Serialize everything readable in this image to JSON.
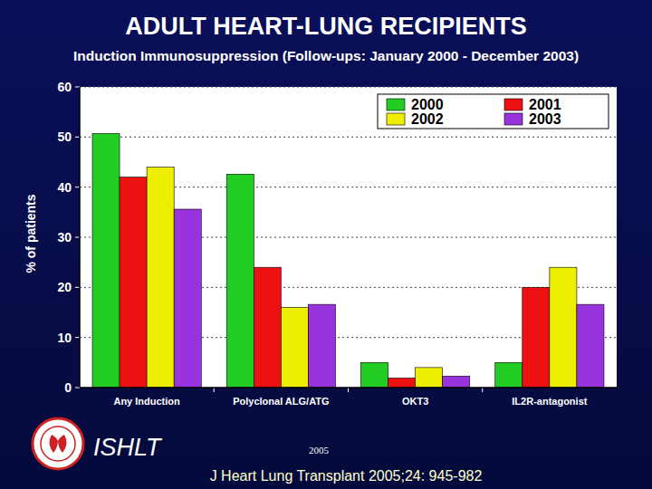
{
  "chart_data": {
    "type": "bar",
    "title": "ADULT HEART-LUNG RECIPIENTS",
    "subtitle": "Induction Immunosuppression (Follow-ups: January 2000  - December 2003)",
    "y_label": "% of patients",
    "categories": [
      "Any Induction",
      "Polyclonal ALG/ATG",
      "OKT3",
      "IL2R-antagonist"
    ],
    "series": [
      {
        "name": "2000",
        "color": "#22cc22",
        "values": [
          50.7,
          42.6,
          5.0,
          5.0
        ]
      },
      {
        "name": "2001",
        "color": "#ee1111",
        "values": [
          42.0,
          24.0,
          1.9,
          20.0
        ]
      },
      {
        "name": "2002",
        "color": "#eeee00",
        "values": [
          44.0,
          16.0,
          4.0,
          24.0
        ]
      },
      {
        "name": "2003",
        "color": "#9933dd",
        "values": [
          35.6,
          16.6,
          2.3,
          16.6
        ]
      }
    ],
    "ylim": [
      0,
      60
    ],
    "yticks": [
      0,
      10,
      20,
      30,
      40,
      50,
      60
    ],
    "grid": true,
    "legend": "top-right",
    "annotations": [
      "ISHLT",
      "2005",
      "J Heart Lung Transplant 2005;24: 945-982"
    ]
  }
}
